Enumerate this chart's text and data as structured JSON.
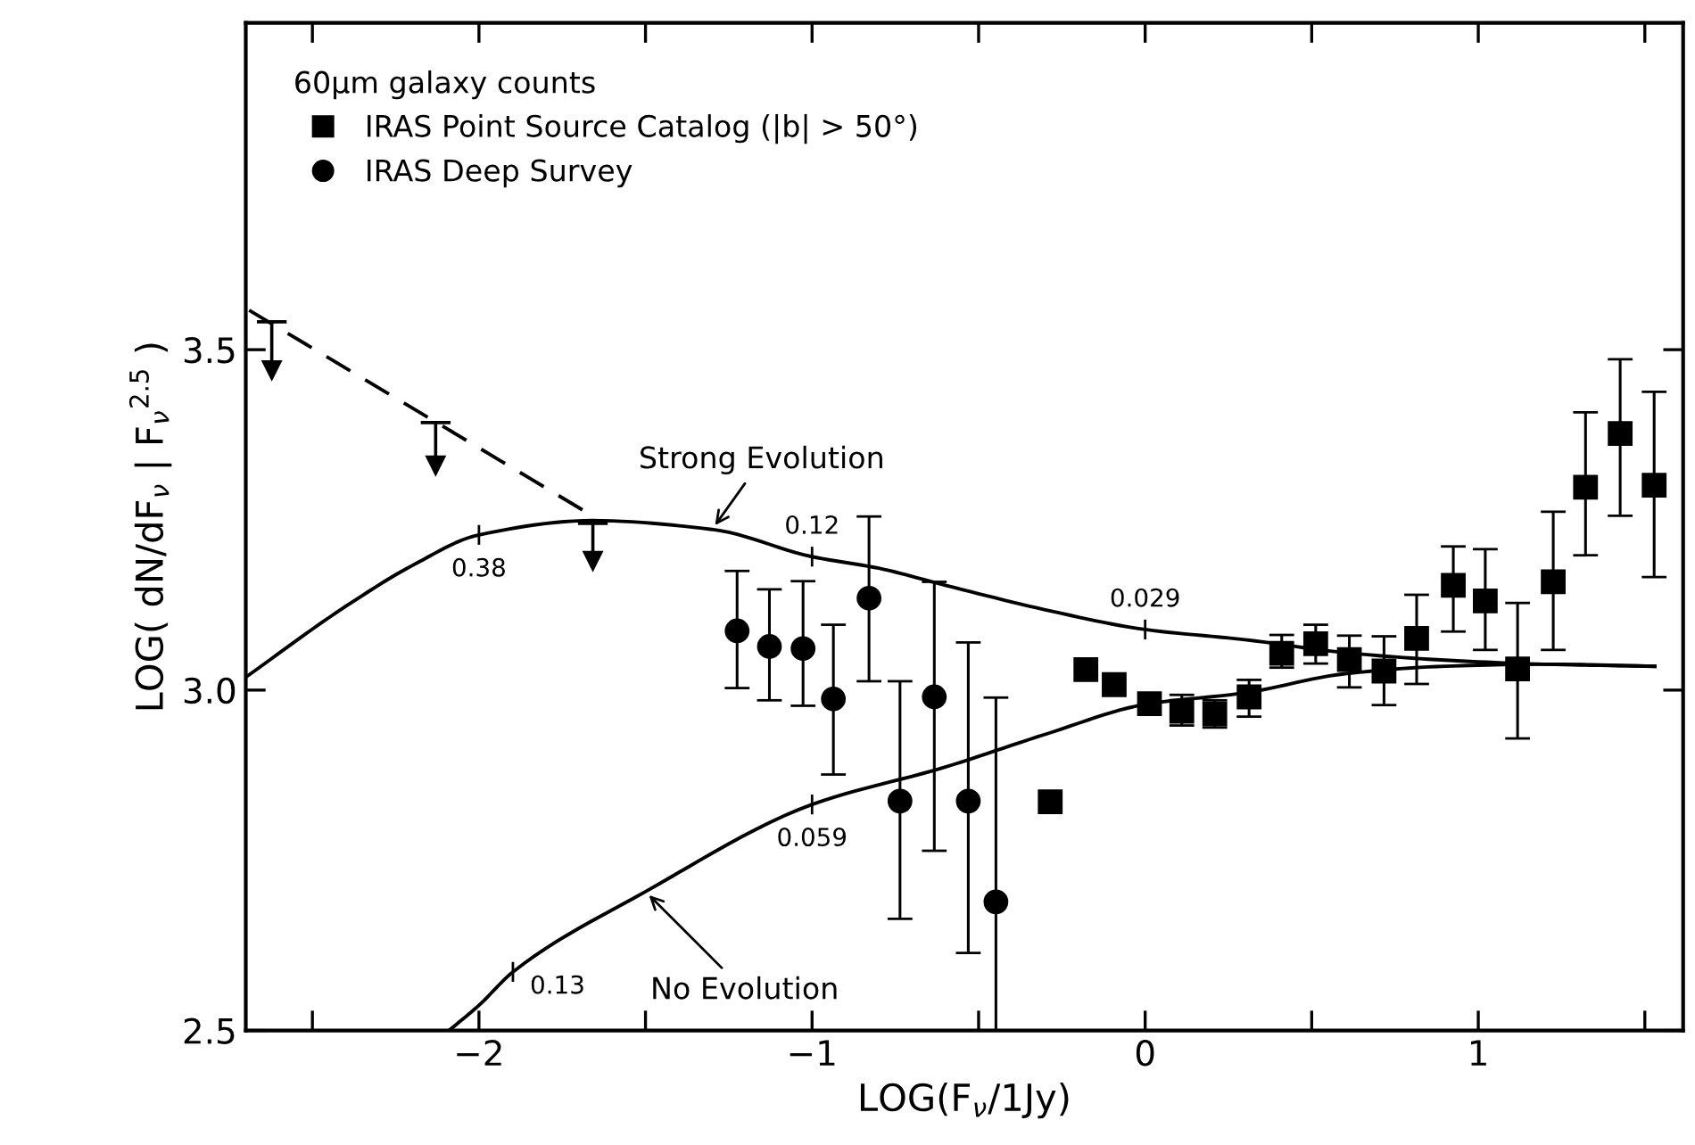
{
  "chart_data": {
    "type": "scatter",
    "xlabel": "LOG(F$_{ν}$/1Jy)",
    "ylabel": "LOG( dN/dF$_{ν}$ | F$_{ν}$$^{2.5}$ )",
    "legend_title": "60μm galaxy counts",
    "xlim": [
      -2.7,
      1.615
    ],
    "ylim": [
      2.5,
      3.98
    ],
    "xticks": [
      {
        "value": -2.5,
        "label": null
      },
      -2,
      {
        "value": -1.5,
        "label": null
      },
      -1,
      {
        "value": -0.5,
        "label": null
      },
      0,
      {
        "value": 0.5,
        "label": null
      },
      1,
      {
        "value": 1.5,
        "label": null
      }
    ],
    "yticks": [
      {
        "value": 2.5,
        "label": "2.5"
      },
      {
        "value": 3.0,
        "label": "3.0"
      },
      {
        "value": 3.5,
        "label": "3.5"
      }
    ],
    "grid": false,
    "legend": "top left",
    "series": [
      {
        "name": "IRAS Point Source Catalog (|b| > 50°)",
        "marker": "square",
        "color": "#000000",
        "x": [
          -0.285,
          -0.178,
          -0.093,
          0.013,
          0.11,
          0.209,
          0.312,
          0.41,
          0.512,
          0.613,
          0.717,
          0.815,
          0.925,
          1.021,
          1.118,
          1.225,
          1.322,
          1.426,
          1.528
        ],
        "values": [
          2.836,
          3.03,
          3.008,
          2.98,
          2.969,
          2.965,
          2.99,
          3.054,
          3.068,
          3.045,
          3.028,
          3.076,
          3.154,
          3.131,
          3.031,
          3.159,
          3.298,
          3.377,
          3.301
        ],
        "errors": [
          null,
          null,
          null,
          null,
          [
            2.948,
            2.993
          ],
          [
            2.945,
            2.985
          ],
          [
            2.961,
            3.015
          ],
          [
            3.033,
            3.081
          ],
          [
            3.039,
            3.096
          ],
          [
            3.004,
            3.08
          ],
          [
            2.978,
            3.079
          ],
          [
            3.009,
            3.14
          ],
          [
            3.086,
            3.211
          ],
          [
            3.059,
            3.207
          ],
          [
            2.929,
            3.128
          ],
          [
            3.059,
            3.262
          ],
          [
            3.198,
            3.408
          ],
          [
            3.256,
            3.486
          ],
          [
            3.166,
            3.438
          ]
        ]
      },
      {
        "name": "IRAS Deep Survey",
        "marker": "circle",
        "color": "#000000",
        "x": [
          -1.225,
          -1.128,
          -1.027,
          -0.936,
          -0.829,
          -0.736,
          -0.633,
          -0.531,
          -0.448
        ],
        "values": [
          3.087,
          3.064,
          3.061,
          2.987,
          3.135,
          2.837,
          2.99,
          2.837,
          2.689
        ],
        "errors": [
          [
            3.003,
            3.175
          ],
          [
            2.985,
            3.148
          ],
          [
            2.977,
            3.16
          ],
          [
            2.876,
            3.096
          ],
          [
            3.013,
            3.255
          ],
          [
            2.664,
            3.013
          ],
          [
            2.764,
            3.159
          ],
          [
            2.614,
            3.07
          ],
          [
            2.5,
            2.989
          ]
        ]
      },
      {
        "marker": "triangle",
        "color": "#000000",
        "x": [
          -2.622,
          -2.13,
          -1.658
        ],
        "values": [
          3.47,
          3.33,
          3.19
        ],
        "errors": [
          [
            3.47,
            3.541
          ],
          [
            3.33,
            3.393
          ],
          [
            3.19,
            3.245
          ]
        ]
      },
      {
        "name": "Strong Evolution",
        "type": "line",
        "line_style": "solid",
        "color": "#000000",
        "x": [
          -2.7,
          -2.4,
          -2.2,
          -2.0,
          -1.66,
          -1.3,
          -1.0,
          -0.8,
          -0.6,
          -0.3,
          0.0,
          0.3,
          0.6,
          0.9,
          1.2,
          1.53
        ],
        "values": [
          3.019,
          3.123,
          3.183,
          3.228,
          3.249,
          3.236,
          3.196,
          3.179,
          3.154,
          3.118,
          3.089,
          3.074,
          3.055,
          3.044,
          3.038,
          3.035
        ]
      },
      {
        "type": "line",
        "line_style": "dashed",
        "color": "#000000",
        "x": [
          -2.69,
          -1.68
        ],
        "values": [
          3.558,
          3.262
        ]
      },
      {
        "name": "No Evolution",
        "type": "line",
        "line_style": "solid",
        "color": "#000000",
        "x": [
          -2.09,
          -2.0,
          -1.898,
          -1.5,
          -1.0,
          -0.6,
          -0.3,
          0.0,
          0.3,
          0.6,
          0.9,
          1.2,
          1.53
        ],
        "values": [
          2.5,
          2.537,
          2.586,
          2.704,
          2.832,
          2.887,
          2.935,
          2.979,
          2.996,
          3.024,
          3.035,
          3.038,
          3.035
        ]
      }
    ],
    "annotations": [
      {
        "text": "0.38",
        "x": -2.0,
        "y": 3.228
      },
      {
        "text": "0.12",
        "x": -1.0,
        "y": 3.196
      },
      {
        "text": "0.029",
        "x": 0.0,
        "y": 3.089
      },
      {
        "text": "0.059",
        "x": -1.0,
        "y": 2.832
      },
      {
        "text": "0.13",
        "x": -1.898,
        "y": 2.586
      }
    ]
  }
}
